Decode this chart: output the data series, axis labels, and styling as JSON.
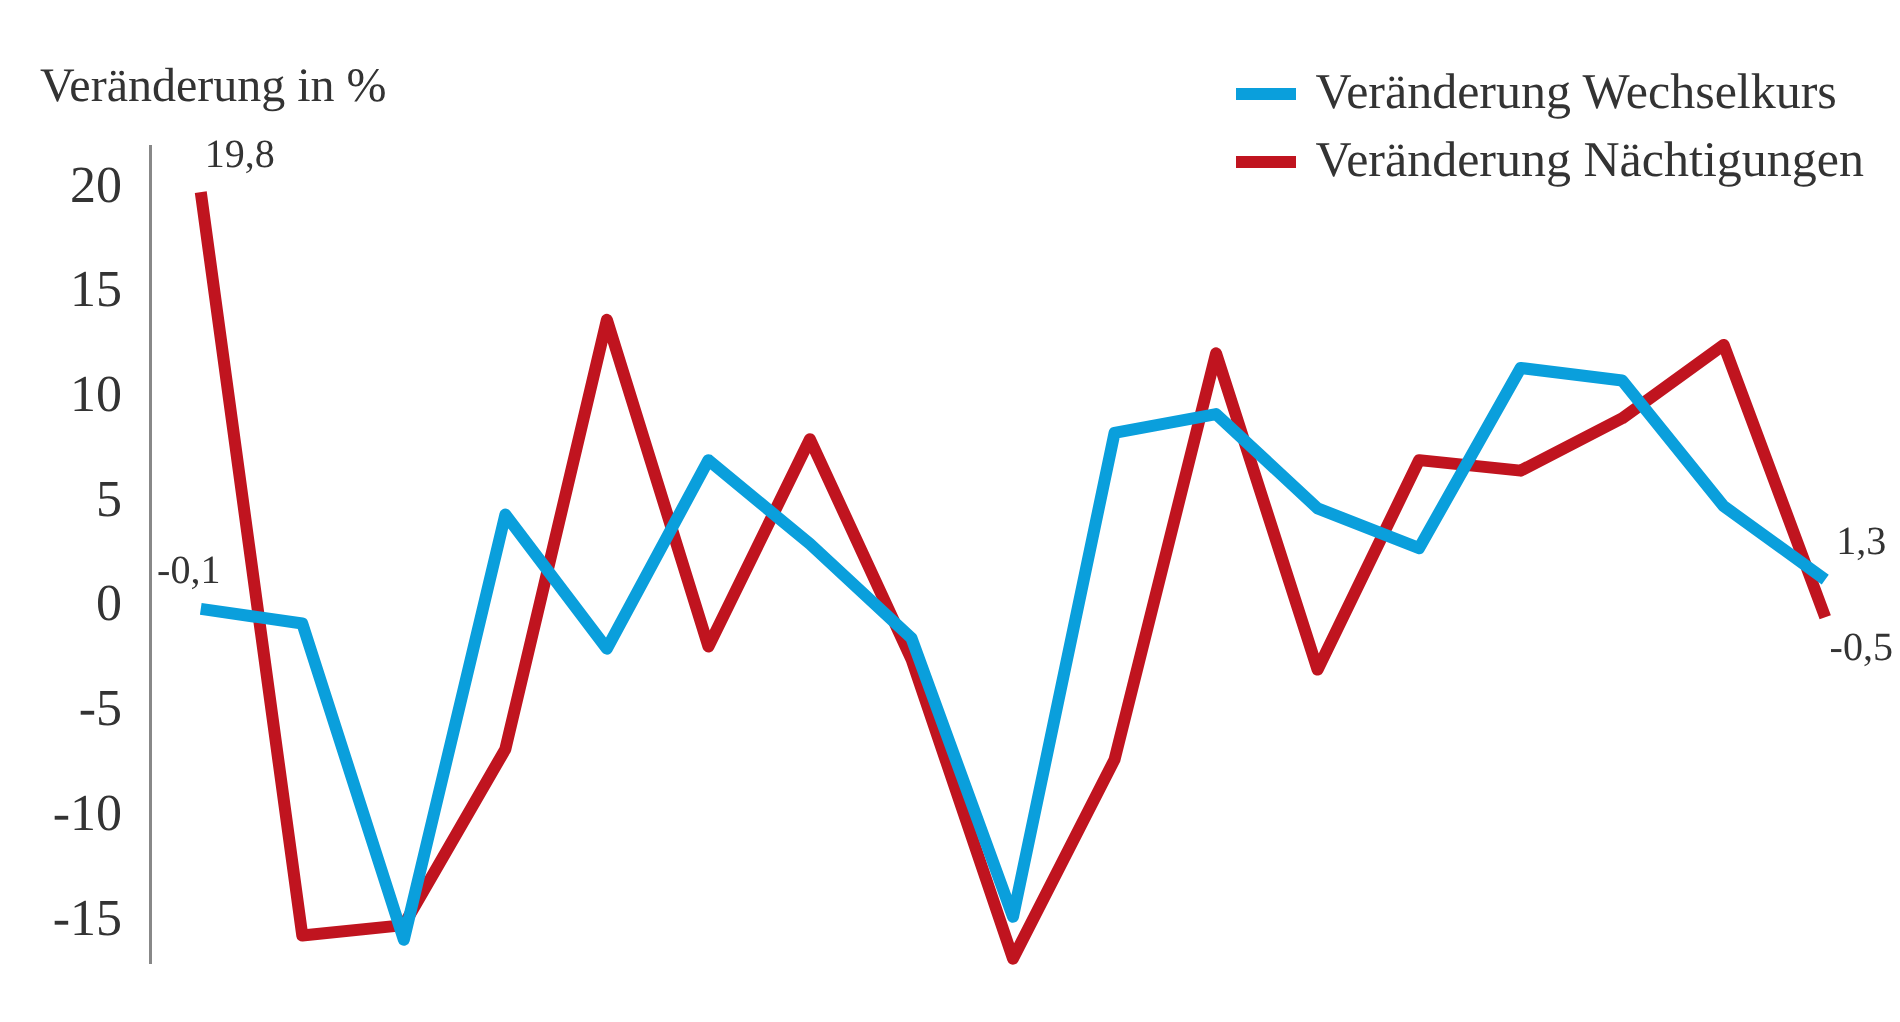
{
  "chart_data": {
    "type": "line",
    "ylabel": "Veränderung in %",
    "categories": [
      null,
      null,
      null,
      null,
      null,
      null,
      null,
      null,
      null,
      null,
      null,
      null,
      null,
      null,
      null,
      null,
      null
    ],
    "series": [
      {
        "name": "Veränderung Wechselkurs",
        "color": "#0a9fdc",
        "values": [
          -0.1,
          -0.8,
          -15.9,
          4.4,
          -2.0,
          7.0,
          3.0,
          -1.5,
          -14.8,
          8.3,
          9.2,
          4.7,
          2.8,
          11.4,
          10.8,
          4.8,
          1.3
        ],
        "value_labels": [
          "-0,1",
          null,
          null,
          null,
          null,
          null,
          null,
          null,
          null,
          null,
          null,
          null,
          null,
          null,
          null,
          null,
          "1,3"
        ]
      },
      {
        "name": "Veränderung Nächtigungen",
        "color": "#c0141f",
        "values": [
          19.8,
          -15.7,
          -15.2,
          -6.8,
          13.7,
          -1.9,
          8.0,
          -2.5,
          -16.8,
          -7.3,
          12.1,
          -3.0,
          7.0,
          6.5,
          9.0,
          12.5,
          -0.5
        ],
        "value_labels": [
          "19,8",
          null,
          null,
          null,
          null,
          null,
          null,
          null,
          null,
          null,
          null,
          null,
          null,
          null,
          null,
          null,
          "-0,5"
        ]
      }
    ],
    "ylim": [
      -17,
      22
    ],
    "yticks": [
      20,
      15,
      10,
      5,
      0,
      -5,
      -10,
      -15
    ],
    "tick_labels": "y",
    "grid": false,
    "legend": "top right",
    "marker": "none",
    "line_style": "solid"
  }
}
